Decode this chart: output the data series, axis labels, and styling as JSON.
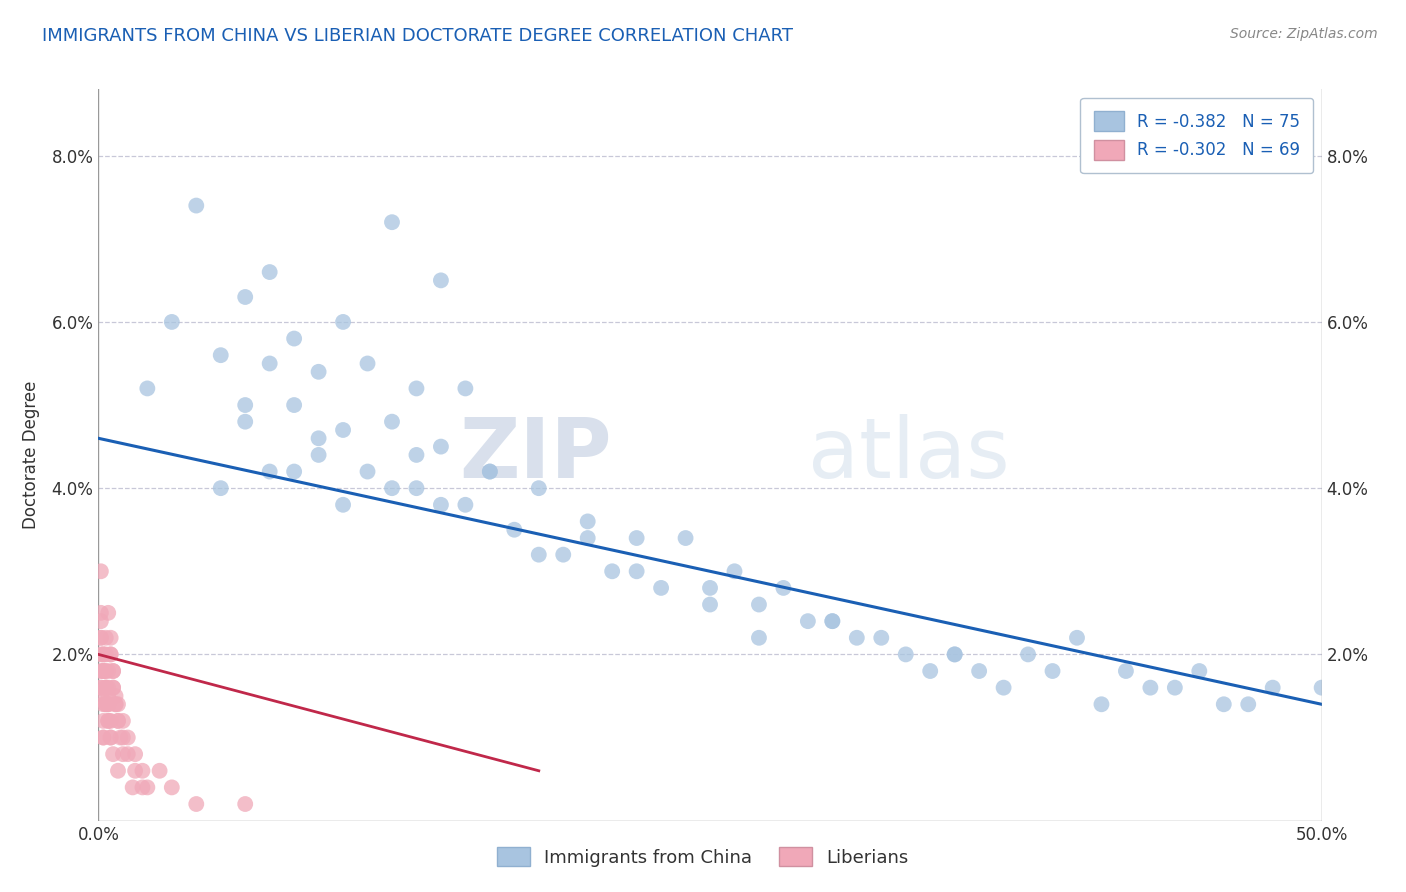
{
  "title": "IMMIGRANTS FROM CHINA VS LIBERIAN DOCTORATE DEGREE CORRELATION CHART",
  "source": "Source: ZipAtlas.com",
  "ylabel": "Doctorate Degree",
  "xmin": 0.0,
  "xmax": 0.5,
  "ymin": 0.0,
  "ymax": 0.088,
  "yticks": [
    0.0,
    0.02,
    0.04,
    0.06,
    0.08
  ],
  "ytick_labels": [
    "",
    "2.0%",
    "4.0%",
    "6.0%",
    "8.0%"
  ],
  "xticks": [
    0.0,
    0.1,
    0.2,
    0.3,
    0.4,
    0.5
  ],
  "xtick_labels": [
    "0.0%",
    "",
    "",
    "",
    "",
    "50.0%"
  ],
  "legend_r1": "R = -0.382",
  "legend_n1": "N = 75",
  "legend_r2": "R = -0.302",
  "legend_n2": "N = 69",
  "scatter_china_color": "#a8c4e0",
  "scatter_liberia_color": "#f0a8b8",
  "line_china_color": "#1a5fb4",
  "line_liberia_color": "#c0284a",
  "watermark_zip": "ZIP",
  "watermark_atlas": "atlas",
  "background_color": "#ffffff",
  "grid_color": "#c8c8d8",
  "title_color": "#1a5fb4",
  "source_color": "#888888",
  "china_x": [
    0.04,
    0.07,
    0.12,
    0.14,
    0.03,
    0.06,
    0.08,
    0.1,
    0.02,
    0.05,
    0.09,
    0.11,
    0.13,
    0.07,
    0.15,
    0.08,
    0.06,
    0.1,
    0.12,
    0.09,
    0.14,
    0.11,
    0.07,
    0.05,
    0.08,
    0.16,
    0.13,
    0.1,
    0.18,
    0.15,
    0.2,
    0.17,
    0.22,
    0.19,
    0.24,
    0.21,
    0.14,
    0.12,
    0.26,
    0.23,
    0.28,
    0.25,
    0.3,
    0.27,
    0.32,
    0.35,
    0.38,
    0.4,
    0.42,
    0.45,
    0.48,
    0.5,
    0.33,
    0.36,
    0.29,
    0.44,
    0.46,
    0.34,
    0.37,
    0.41,
    0.18,
    0.22,
    0.27,
    0.31,
    0.16,
    0.2,
    0.25,
    0.3,
    0.35,
    0.39,
    0.43,
    0.47,
    0.13,
    0.09,
    0.06
  ],
  "china_y": [
    0.074,
    0.066,
    0.072,
    0.065,
    0.06,
    0.063,
    0.058,
    0.06,
    0.052,
    0.056,
    0.054,
    0.055,
    0.052,
    0.055,
    0.052,
    0.05,
    0.048,
    0.047,
    0.048,
    0.044,
    0.045,
    0.042,
    0.042,
    0.04,
    0.042,
    0.042,
    0.04,
    0.038,
    0.04,
    0.038,
    0.036,
    0.035,
    0.034,
    0.032,
    0.034,
    0.03,
    0.038,
    0.04,
    0.03,
    0.028,
    0.028,
    0.026,
    0.024,
    0.022,
    0.022,
    0.02,
    0.02,
    0.022,
    0.018,
    0.018,
    0.016,
    0.016,
    0.02,
    0.018,
    0.024,
    0.016,
    0.014,
    0.018,
    0.016,
    0.014,
    0.032,
    0.03,
    0.026,
    0.022,
    0.042,
    0.034,
    0.028,
    0.024,
    0.02,
    0.018,
    0.016,
    0.014,
    0.044,
    0.046,
    0.05
  ],
  "liberia_x": [
    0.001,
    0.002,
    0.003,
    0.004,
    0.005,
    0.001,
    0.002,
    0.003,
    0.004,
    0.006,
    0.001,
    0.002,
    0.003,
    0.005,
    0.007,
    0.001,
    0.002,
    0.004,
    0.006,
    0.008,
    0.001,
    0.002,
    0.003,
    0.005,
    0.009,
    0.001,
    0.003,
    0.004,
    0.006,
    0.01,
    0.001,
    0.002,
    0.004,
    0.007,
    0.012,
    0.001,
    0.003,
    0.005,
    0.008,
    0.015,
    0.001,
    0.002,
    0.004,
    0.006,
    0.018,
    0.001,
    0.003,
    0.005,
    0.01,
    0.02,
    0.002,
    0.004,
    0.007,
    0.012,
    0.025,
    0.002,
    0.005,
    0.008,
    0.015,
    0.03,
    0.003,
    0.006,
    0.01,
    0.018,
    0.04,
    0.004,
    0.008,
    0.014,
    0.06
  ],
  "liberia_y": [
    0.022,
    0.02,
    0.018,
    0.025,
    0.02,
    0.015,
    0.018,
    0.022,
    0.012,
    0.018,
    0.025,
    0.01,
    0.016,
    0.02,
    0.015,
    0.03,
    0.014,
    0.018,
    0.016,
    0.012,
    0.02,
    0.018,
    0.014,
    0.022,
    0.01,
    0.016,
    0.02,
    0.015,
    0.018,
    0.008,
    0.024,
    0.012,
    0.016,
    0.014,
    0.01,
    0.018,
    0.016,
    0.012,
    0.014,
    0.008,
    0.022,
    0.01,
    0.014,
    0.016,
    0.006,
    0.016,
    0.014,
    0.01,
    0.012,
    0.004,
    0.02,
    0.012,
    0.014,
    0.008,
    0.006,
    0.018,
    0.01,
    0.012,
    0.006,
    0.004,
    0.016,
    0.008,
    0.01,
    0.004,
    0.002,
    0.014,
    0.006,
    0.004,
    0.002
  ],
  "china_line_x0": 0.0,
  "china_line_y0": 0.046,
  "china_line_x1": 0.5,
  "china_line_y1": 0.014,
  "liberia_line_x0": 0.0,
  "liberia_line_y0": 0.02,
  "liberia_line_x1": 0.18,
  "liberia_line_y1": 0.006
}
